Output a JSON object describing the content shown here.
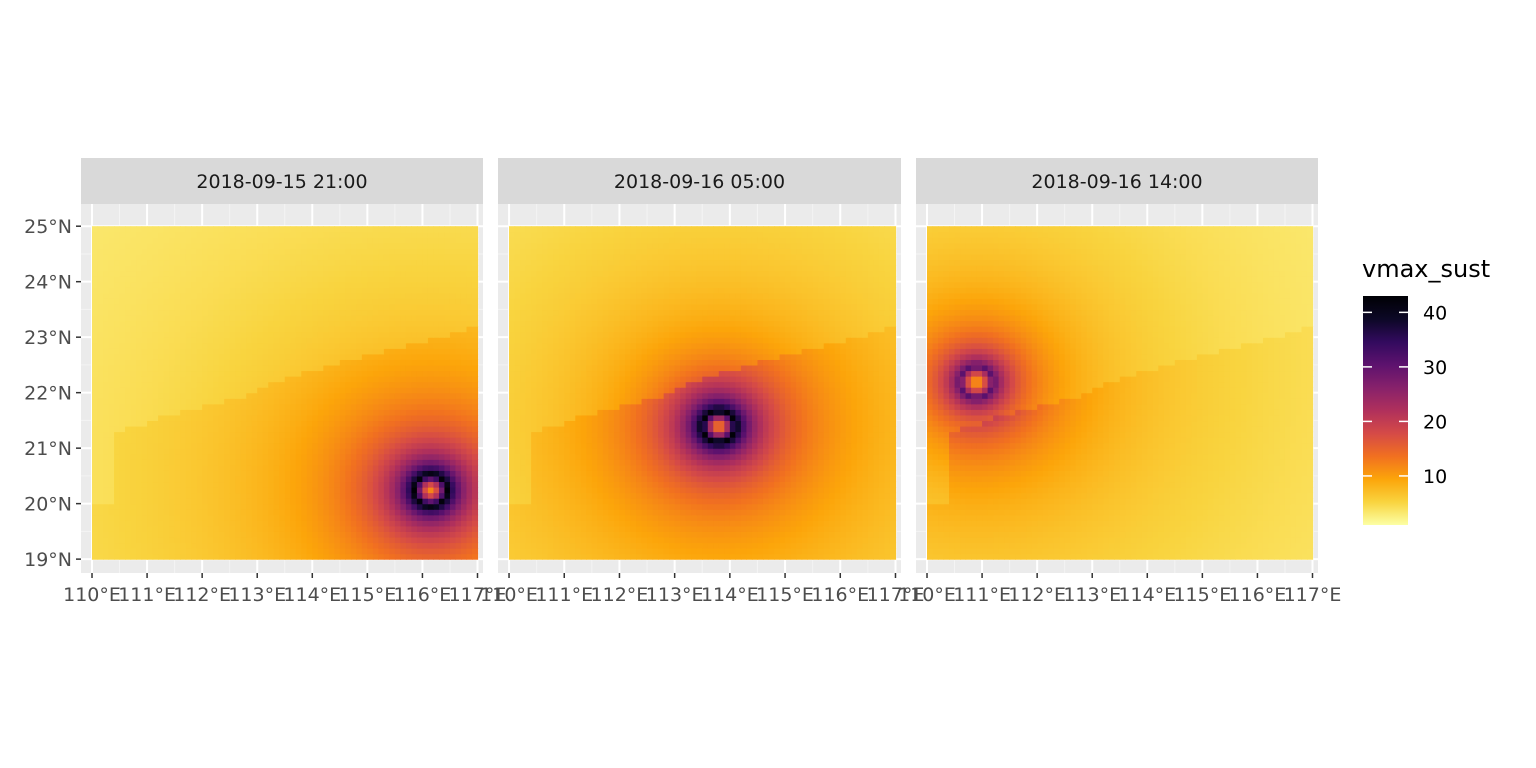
{
  "chart_data": {
    "type": "heatmap",
    "variable": "vmax_sust",
    "colormap": "inferno",
    "color_range": [
      1,
      43
    ],
    "color_stops": [
      "#fcffa4",
      "#f9d43f",
      "#fca50a",
      "#f17020",
      "#d54a47",
      "#b0305c",
      "#87216b",
      "#5d126e",
      "#320a5e",
      "#0c0826",
      "#000004"
    ],
    "xlim": [
      109.8,
      117.1
    ],
    "ylim": [
      18.75,
      25.4
    ],
    "grid_extent": {
      "lon": [
        110.0,
        117.0
      ],
      "lat": [
        19.0,
        25.0
      ]
    },
    "x_ticks": [
      110,
      111,
      112,
      113,
      114,
      115,
      116,
      117
    ],
    "x_tick_labels": [
      "110°E",
      "111°E",
      "112°E",
      "113°E",
      "114°E",
      "115°E",
      "116°E",
      "117°E"
    ],
    "y_ticks": [
      19,
      20,
      21,
      22,
      23,
      24,
      25
    ],
    "y_tick_labels": [
      "19°N",
      "20°N",
      "21°N",
      "22°N",
      "23°N",
      "24°N",
      "25°N"
    ],
    "legend": {
      "title": "vmax_sust",
      "placement": "right",
      "ticks": [
        10,
        20,
        30,
        40
      ],
      "tick_labels": [
        "10",
        "20",
        "30",
        "40"
      ]
    },
    "panels": [
      {
        "label": "2018-09-15 21:00",
        "storm_center": {
          "lon": 116.15,
          "lat": 20.25
        },
        "peak_vmax": 43,
        "eye_vmax": 12
      },
      {
        "label": "2018-09-16 05:00",
        "storm_center": {
          "lon": 113.8,
          "lat": 21.4
        },
        "peak_vmax": 43,
        "eye_vmax": 12
      },
      {
        "label": "2018-09-16 14:00",
        "storm_center": {
          "lon": 110.9,
          "lat": 22.2
        },
        "peak_vmax": 38,
        "eye_vmax": 12
      }
    ]
  }
}
